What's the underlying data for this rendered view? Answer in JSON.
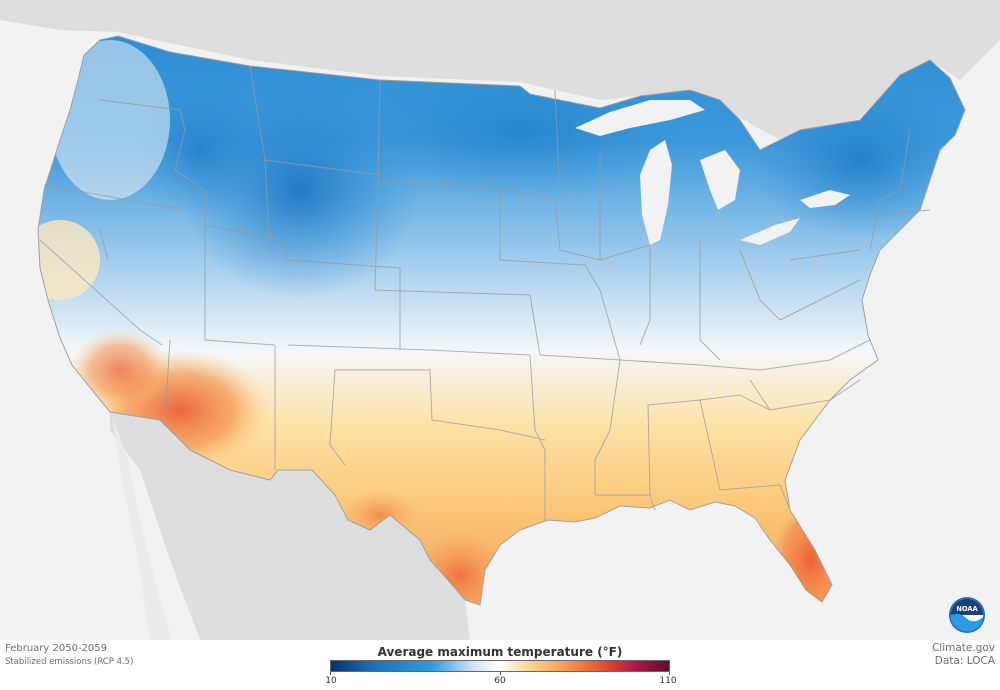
{
  "map": {
    "region": "Contiguous United States",
    "variable": "Average maximum temperature",
    "units": "°F"
  },
  "footer": {
    "period": "February 2050-2059",
    "scenario": "Stabilized emissions (RCP 4.5)",
    "source": "Climate.gov",
    "data_credit": "Data: LOCA"
  },
  "legend": {
    "title": "Average maximum temperature (°F)",
    "min_label": "10",
    "mid_label": "60",
    "max_label": "110",
    "min_value": 10,
    "mid_value": 60,
    "max_value": 110,
    "colors": [
      "#08306b",
      "#1c6fb5",
      "#2e9be0",
      "#cfe6f6",
      "#ffffff",
      "#fddb9a",
      "#f8a35a",
      "#e4542e",
      "#b21547",
      "#5e0b2f"
    ]
  },
  "logo": {
    "name": "noaa-logo",
    "text": "NOAA"
  },
  "colors": {
    "land_background": "#e9e9e9",
    "water": "#f2f2f2",
    "border": "#9a9a9a",
    "cold": "#2e8fd4",
    "cool": "#8cc4ea",
    "neutral": "#f4f6f8",
    "warm": "#fbcf85",
    "hot": "#ef7345"
  }
}
